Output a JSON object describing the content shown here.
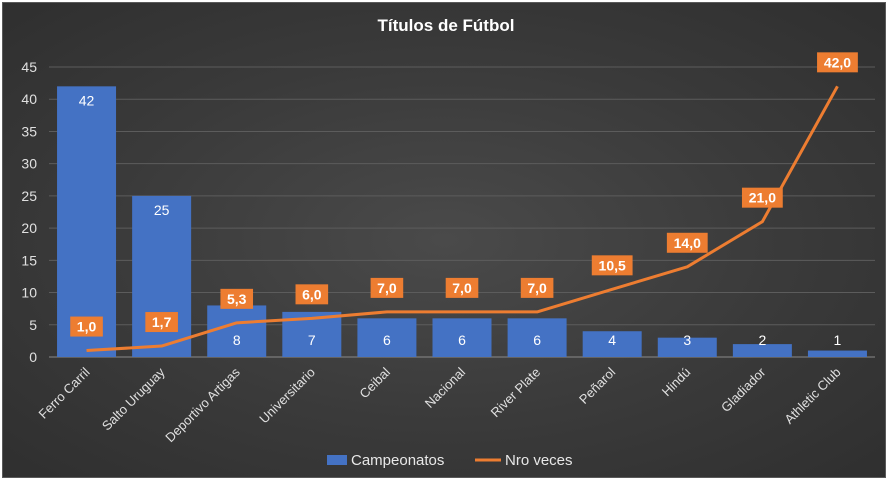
{
  "chart_data": {
    "type": "bar",
    "title": "Títulos de Fútbol",
    "categories": [
      "Ferro Carril",
      "Salto Uruguay",
      "Deportivo Artigas",
      "Universitario",
      "Ceibal",
      "Nacional",
      "River Plate",
      "Peñarol",
      "Hindú",
      "Gladiador",
      "Athletic Club"
    ],
    "series": [
      {
        "name": "Campeonatos",
        "type": "bar",
        "color": "#4472c4",
        "values": [
          42,
          25,
          8,
          7,
          6,
          6,
          6,
          4,
          3,
          2,
          1
        ],
        "labels": [
          "42",
          "25",
          "8",
          "7",
          "6",
          "6",
          "6",
          "4",
          "3",
          "2",
          "1"
        ]
      },
      {
        "name": "Nro veces",
        "type": "line",
        "color": "#ed7d31",
        "values": [
          1.0,
          1.7,
          5.3,
          6.0,
          7.0,
          7.0,
          7.0,
          10.5,
          14.0,
          21.0,
          42.0
        ],
        "labels": [
          "1,0",
          "1,7",
          "5,3",
          "6,0",
          "7,0",
          "7,0",
          "7,0",
          "10,5",
          "14,0",
          "21,0",
          "42,0"
        ]
      }
    ],
    "yticks": [
      "0",
      "5",
      "10",
      "15",
      "20",
      "25",
      "30",
      "35",
      "40",
      "45"
    ],
    "ylim": [
      0,
      45
    ],
    "grid": true,
    "legend": "bottom"
  }
}
